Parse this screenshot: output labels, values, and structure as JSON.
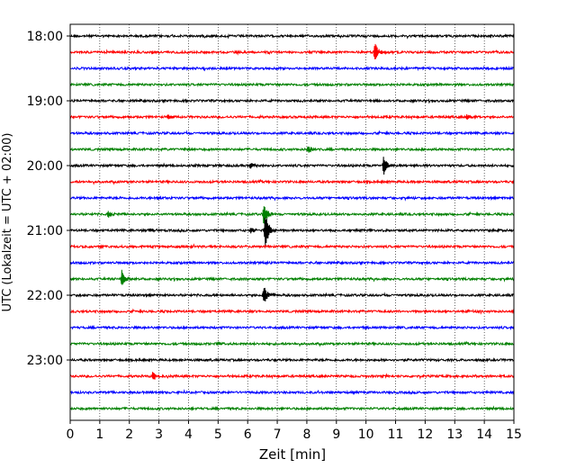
{
  "chart_data": {
    "type": "line",
    "title": "",
    "xlabel": "Zeit  [min]",
    "ylabel": "UTC (Lokalzeit = UTC + 02:00)",
    "xlim": [
      0,
      15
    ],
    "x_ticks": [
      0,
      1,
      2,
      3,
      4,
      5,
      6,
      7,
      8,
      9,
      10,
      11,
      12,
      13,
      14,
      15
    ],
    "y_tick_labels": [
      "18:00",
      "19:00",
      "20:00",
      "21:00",
      "22:00",
      "23:00"
    ],
    "grid": "vertical dotted at each minute",
    "traces_per_hour": 4,
    "colors": [
      "#000000",
      "#ff0000",
      "#0000ff",
      "#008000"
    ],
    "series": [
      {
        "label": "18:00",
        "color": "#000000",
        "events": []
      },
      {
        "label": "18:15",
        "color": "#ff0000",
        "events": [
          {
            "t": 10.3,
            "amp": 12
          }
        ]
      },
      {
        "label": "18:30",
        "color": "#0000ff",
        "events": []
      },
      {
        "label": "18:45",
        "color": "#008000",
        "events": []
      },
      {
        "label": "19:00",
        "color": "#000000",
        "events": []
      },
      {
        "label": "19:15",
        "color": "#ff0000",
        "events": [
          {
            "t": 3.3,
            "amp": 3
          },
          {
            "t": 13.4,
            "amp": 3
          }
        ]
      },
      {
        "label": "19:30",
        "color": "#0000ff",
        "events": []
      },
      {
        "label": "19:45",
        "color": "#008000",
        "events": [
          {
            "t": 8.05,
            "amp": 5
          },
          {
            "t": 3.85,
            "amp": 2
          }
        ]
      },
      {
        "label": "20:00",
        "color": "#000000",
        "events": [
          {
            "t": 10.6,
            "amp": 11
          },
          {
            "t": 6.1,
            "amp": 3
          }
        ]
      },
      {
        "label": "20:15",
        "color": "#ff0000",
        "events": []
      },
      {
        "label": "20:30",
        "color": "#0000ff",
        "events": [
          {
            "t": 2.95,
            "amp": 2
          }
        ]
      },
      {
        "label": "20:45",
        "color": "#008000",
        "events": [
          {
            "t": 6.55,
            "amp": 14
          },
          {
            "t": 1.3,
            "amp": 4
          }
        ]
      },
      {
        "label": "21:00",
        "color": "#000000",
        "events": [
          {
            "t": 6.6,
            "amp": 22
          },
          {
            "t": 2.7,
            "amp": 3
          },
          {
            "t": 6.1,
            "amp": 4
          }
        ]
      },
      {
        "label": "21:15",
        "color": "#ff0000",
        "events": []
      },
      {
        "label": "21:30",
        "color": "#0000ff",
        "events": []
      },
      {
        "label": "21:45",
        "color": "#008000",
        "events": [
          {
            "t": 1.75,
            "amp": 11
          }
        ]
      },
      {
        "label": "22:00",
        "color": "#000000",
        "events": [
          {
            "t": 6.55,
            "amp": 11
          }
        ]
      },
      {
        "label": "22:15",
        "color": "#ff0000",
        "events": [
          {
            "t": 13.4,
            "amp": 3
          }
        ]
      },
      {
        "label": "22:30",
        "color": "#0000ff",
        "events": [
          {
            "t": 9.9,
            "amp": 2
          }
        ]
      },
      {
        "label": "22:45",
        "color": "#008000",
        "events": [
          {
            "t": 5.0,
            "amp": 2
          }
        ]
      },
      {
        "label": "23:00",
        "color": "#000000",
        "events": []
      },
      {
        "label": "23:15",
        "color": "#ff0000",
        "events": [
          {
            "t": 2.8,
            "amp": 5
          }
        ]
      },
      {
        "label": "23:30",
        "color": "#0000ff",
        "events": []
      },
      {
        "label": "23:45",
        "color": "#008000",
        "events": []
      }
    ]
  }
}
